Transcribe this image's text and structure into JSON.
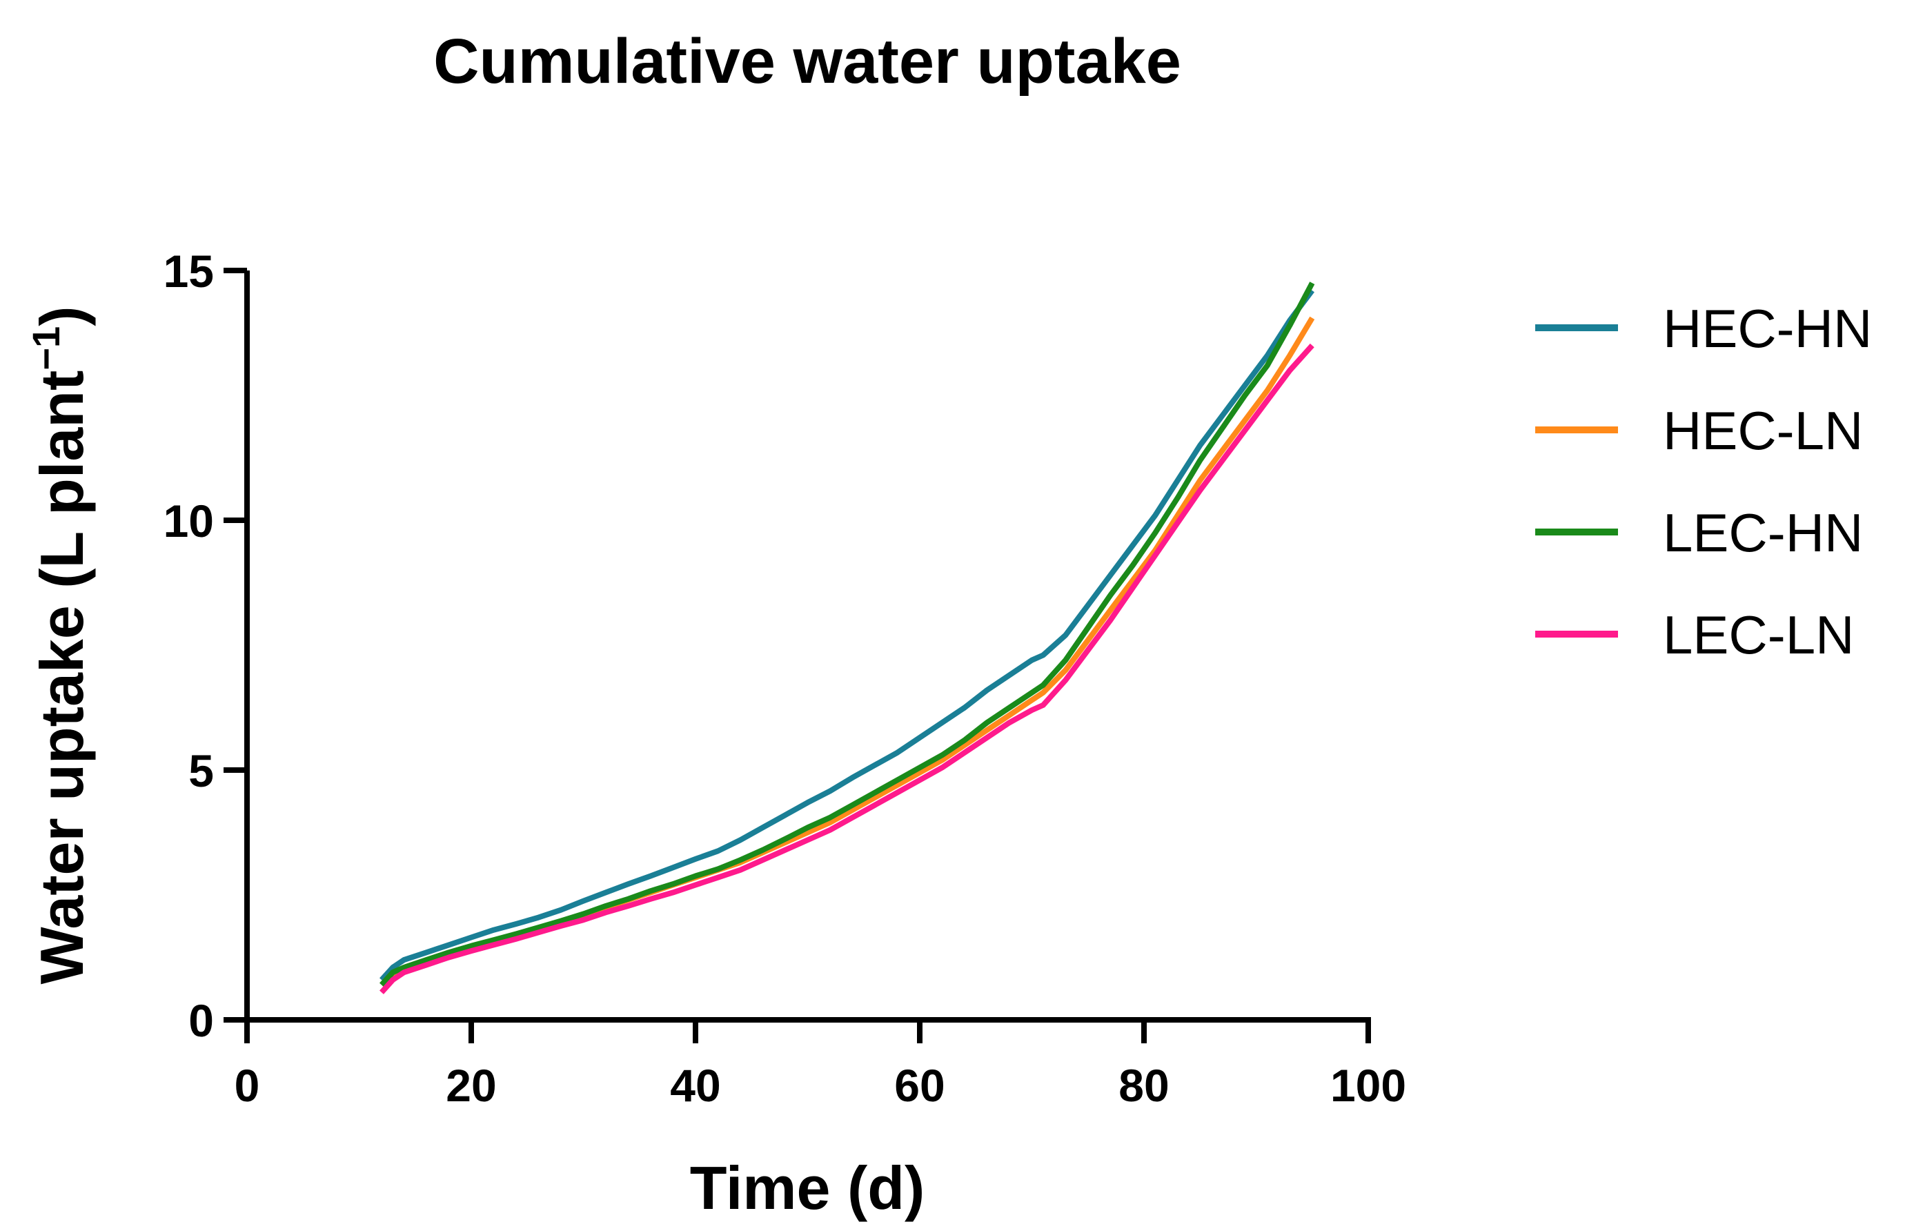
{
  "chart_data": {
    "type": "line",
    "title": "Cumulative water uptake",
    "xlabel": "Time (d)",
    "ylabel_main": "Water uptake (L plant",
    "ylabel_sup": "−1",
    "ylabel_close": ")",
    "xlim": [
      0,
      100
    ],
    "ylim": [
      0,
      15
    ],
    "xticks": [
      0,
      20,
      40,
      60,
      80,
      100
    ],
    "yticks": [
      0,
      5,
      10,
      15
    ],
    "grid": false,
    "legend_position": "right",
    "x": [
      12,
      13,
      14,
      16,
      18,
      20,
      22,
      24,
      26,
      28,
      30,
      32,
      34,
      36,
      38,
      40,
      42,
      44,
      46,
      48,
      50,
      52,
      54,
      56,
      58,
      60,
      62,
      64,
      66,
      68,
      70,
      71,
      73,
      75,
      77,
      79,
      81,
      83,
      85,
      87,
      89,
      91,
      93,
      95
    ],
    "series": [
      {
        "name": "HEC-HN",
        "color": "#1a7f96",
        "values": [
          0.8,
          1.05,
          1.2,
          1.35,
          1.5,
          1.65,
          1.8,
          1.92,
          2.05,
          2.2,
          2.38,
          2.55,
          2.72,
          2.88,
          3.05,
          3.22,
          3.38,
          3.6,
          3.85,
          4.1,
          4.35,
          4.58,
          4.85,
          5.1,
          5.35,
          5.65,
          5.95,
          6.25,
          6.6,
          6.9,
          7.2,
          7.3,
          7.7,
          8.3,
          8.9,
          9.5,
          10.1,
          10.8,
          11.5,
          12.1,
          12.7,
          13.3,
          14.0,
          14.6
        ]
      },
      {
        "name": "HEC-LN",
        "color": "#ff8a1a",
        "values": [
          0.7,
          0.9,
          1.0,
          1.15,
          1.3,
          1.45,
          1.58,
          1.7,
          1.82,
          1.95,
          2.1,
          2.25,
          2.4,
          2.55,
          2.7,
          2.85,
          3.0,
          3.15,
          3.35,
          3.55,
          3.75,
          3.95,
          4.2,
          4.45,
          4.7,
          4.95,
          5.2,
          5.5,
          5.8,
          6.1,
          6.4,
          6.55,
          7.0,
          7.6,
          8.2,
          8.8,
          9.4,
          10.1,
          10.8,
          11.4,
          12.0,
          12.6,
          13.3,
          14.05
        ]
      },
      {
        "name": "LEC-HN",
        "color": "#1a8a1a",
        "values": [
          0.7,
          0.95,
          1.05,
          1.2,
          1.35,
          1.48,
          1.6,
          1.72,
          1.85,
          1.98,
          2.12,
          2.28,
          2.42,
          2.58,
          2.72,
          2.88,
          3.02,
          3.2,
          3.4,
          3.62,
          3.85,
          4.05,
          4.3,
          4.55,
          4.8,
          5.05,
          5.3,
          5.6,
          5.95,
          6.25,
          6.55,
          6.7,
          7.2,
          7.85,
          8.5,
          9.1,
          9.75,
          10.45,
          11.2,
          11.85,
          12.5,
          13.1,
          13.9,
          14.75
        ]
      },
      {
        "name": "LEC-LN",
        "color": "#ff1a8c",
        "values": [
          0.55,
          0.8,
          0.95,
          1.1,
          1.25,
          1.38,
          1.5,
          1.62,
          1.75,
          1.88,
          2.0,
          2.15,
          2.28,
          2.42,
          2.55,
          2.7,
          2.85,
          3.0,
          3.2,
          3.4,
          3.6,
          3.8,
          4.05,
          4.3,
          4.55,
          4.8,
          5.05,
          5.35,
          5.65,
          5.95,
          6.2,
          6.3,
          6.8,
          7.4,
          8.0,
          8.65,
          9.3,
          9.95,
          10.6,
          11.2,
          11.8,
          12.4,
          13.0,
          13.5
        ]
      }
    ]
  }
}
